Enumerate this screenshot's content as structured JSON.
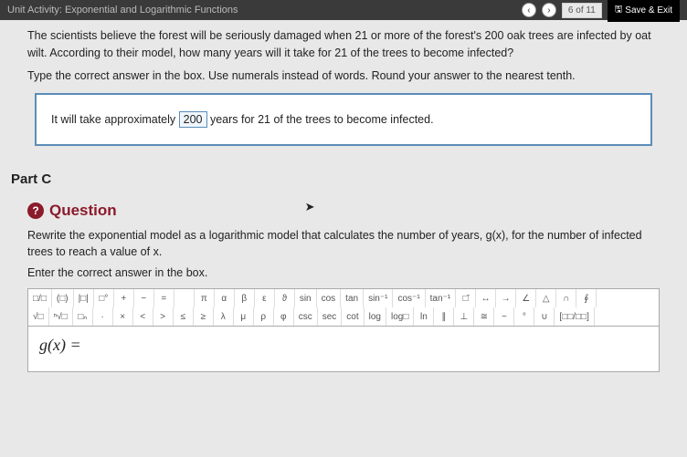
{
  "topbar": {
    "title": "Unit Activity: Exponential and Logarithmic Functions",
    "page_counter": "6 of 11",
    "save_exit": "Save & Exit"
  },
  "partB": {
    "problem_line1": "The scientists believe the forest will be seriously damaged when 21 or more of the forest's 200 oak trees are infected by oat wilt. According to their model, how many years will it take for 21 of the trees to become infected?",
    "instruction": "Type the correct answer in the box. Use numerals instead of words. Round your answer to the nearest tenth.",
    "answer_pre": "It will take approximately ",
    "answer_value": "200",
    "answer_post": " years for 21 of the trees to become infected."
  },
  "partC": {
    "label": "Part C",
    "q_title": "Question",
    "text": "Rewrite the exponential model as a logarithmic model that calculates the number of years, g(x), for the number of infected trees to reach a value of x.",
    "enter": "Enter the correct answer in the box.",
    "equation": "g(x) ="
  },
  "toolbar": {
    "row1": [
      "□/□",
      "(□)",
      "|□|",
      "□°",
      "+",
      "−",
      "=",
      "",
      "π",
      "α",
      "β",
      "ε",
      "ϑ",
      "sin",
      "cos",
      "tan",
      "sin⁻¹",
      "cos⁻¹",
      "tan⁻¹",
      "□̄",
      "↔",
      "→",
      "∠",
      "△",
      "∩",
      "∮"
    ],
    "row2": [
      "√□",
      "ⁿ√□",
      "□ₙ",
      "·",
      "×",
      "<",
      ">",
      "≤",
      "≥",
      "λ",
      "μ",
      "ρ",
      "φ",
      "csc",
      "sec",
      "cot",
      "log",
      "log□",
      "ln",
      "∥",
      "⊥",
      "≅",
      "~",
      "°",
      "∪",
      "[□□/□□]"
    ]
  },
  "colors": {
    "topbar_bg": "#3a3a3a",
    "body_bg": "#e8e8e8",
    "answer_border": "#5b8db8",
    "question_red": "#8b1a2b"
  }
}
